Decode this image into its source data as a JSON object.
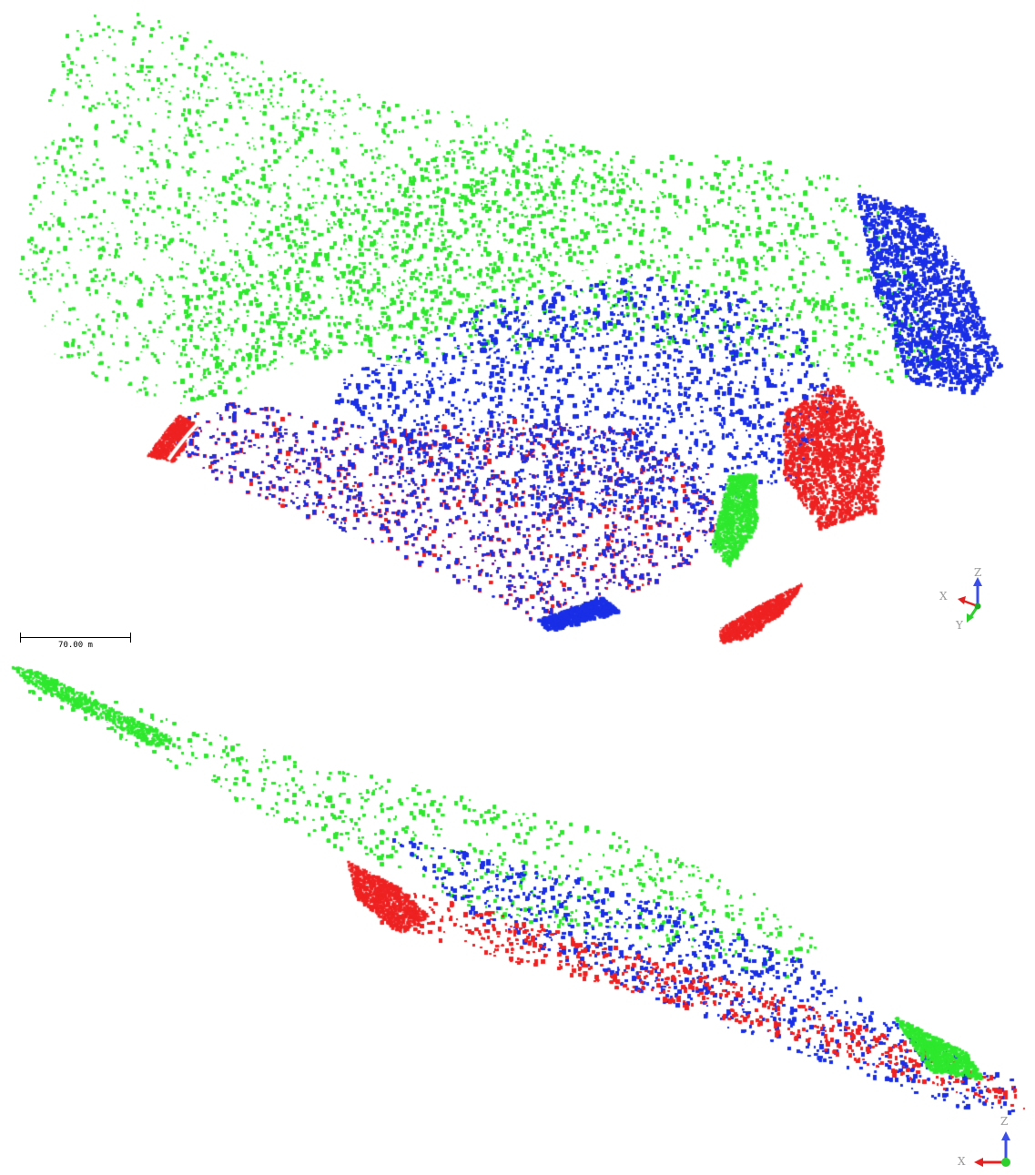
{
  "scale_bar": {
    "label": "70.00 m"
  },
  "views": [
    {
      "name": "top-view",
      "triad": {
        "x_label": "X",
        "y_label": "Y",
        "z_label": "Z"
      }
    },
    {
      "name": "side-view",
      "triad": {
        "x_label": "X",
        "z_label": "Z"
      }
    }
  ],
  "classes": [
    {
      "color": "#2ee82e"
    },
    {
      "color": "#1a2fe6"
    },
    {
      "color": "#ee2222"
    }
  ]
}
